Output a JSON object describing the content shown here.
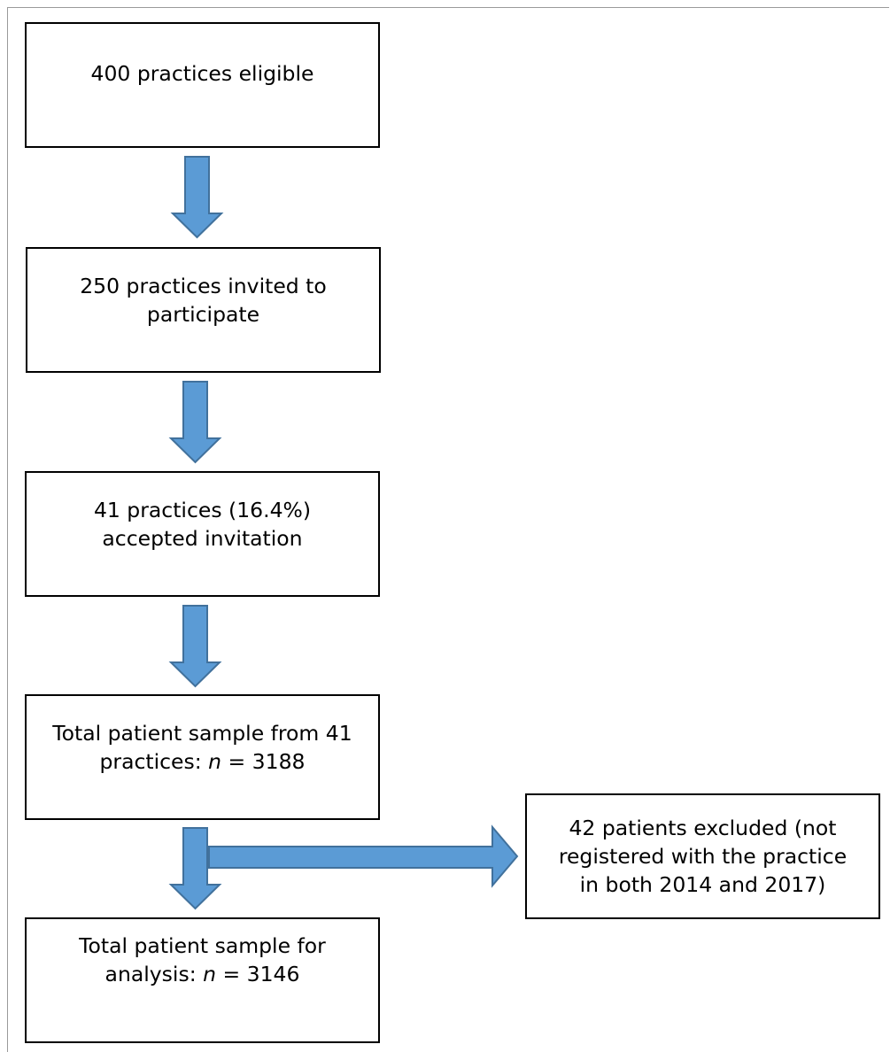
{
  "flowchart": {
    "boxes": [
      {
        "id": "eligible",
        "lines": [
          "400 practices eligible"
        ]
      },
      {
        "id": "invited",
        "lines": [
          "250 practices invited to",
          "participate"
        ]
      },
      {
        "id": "accepted",
        "lines": [
          "41 practices (16.4%)",
          "accepted invitation"
        ]
      },
      {
        "id": "sample",
        "lines": [
          "Total patient sample from 41",
          "practices: ",
          "n",
          " = 3188"
        ]
      },
      {
        "id": "excluded",
        "lines": [
          "42 patients excluded (not",
          "registered with the practice",
          "in both 2014 and 2017)"
        ]
      },
      {
        "id": "analysis",
        "lines": [
          "Total patient sample for",
          "analysis: ",
          "n",
          " = 3146"
        ]
      }
    ],
    "arrow_color": "#5b9bd5",
    "arrow_stroke": "#41719c",
    "box_border_color": "#000000"
  }
}
